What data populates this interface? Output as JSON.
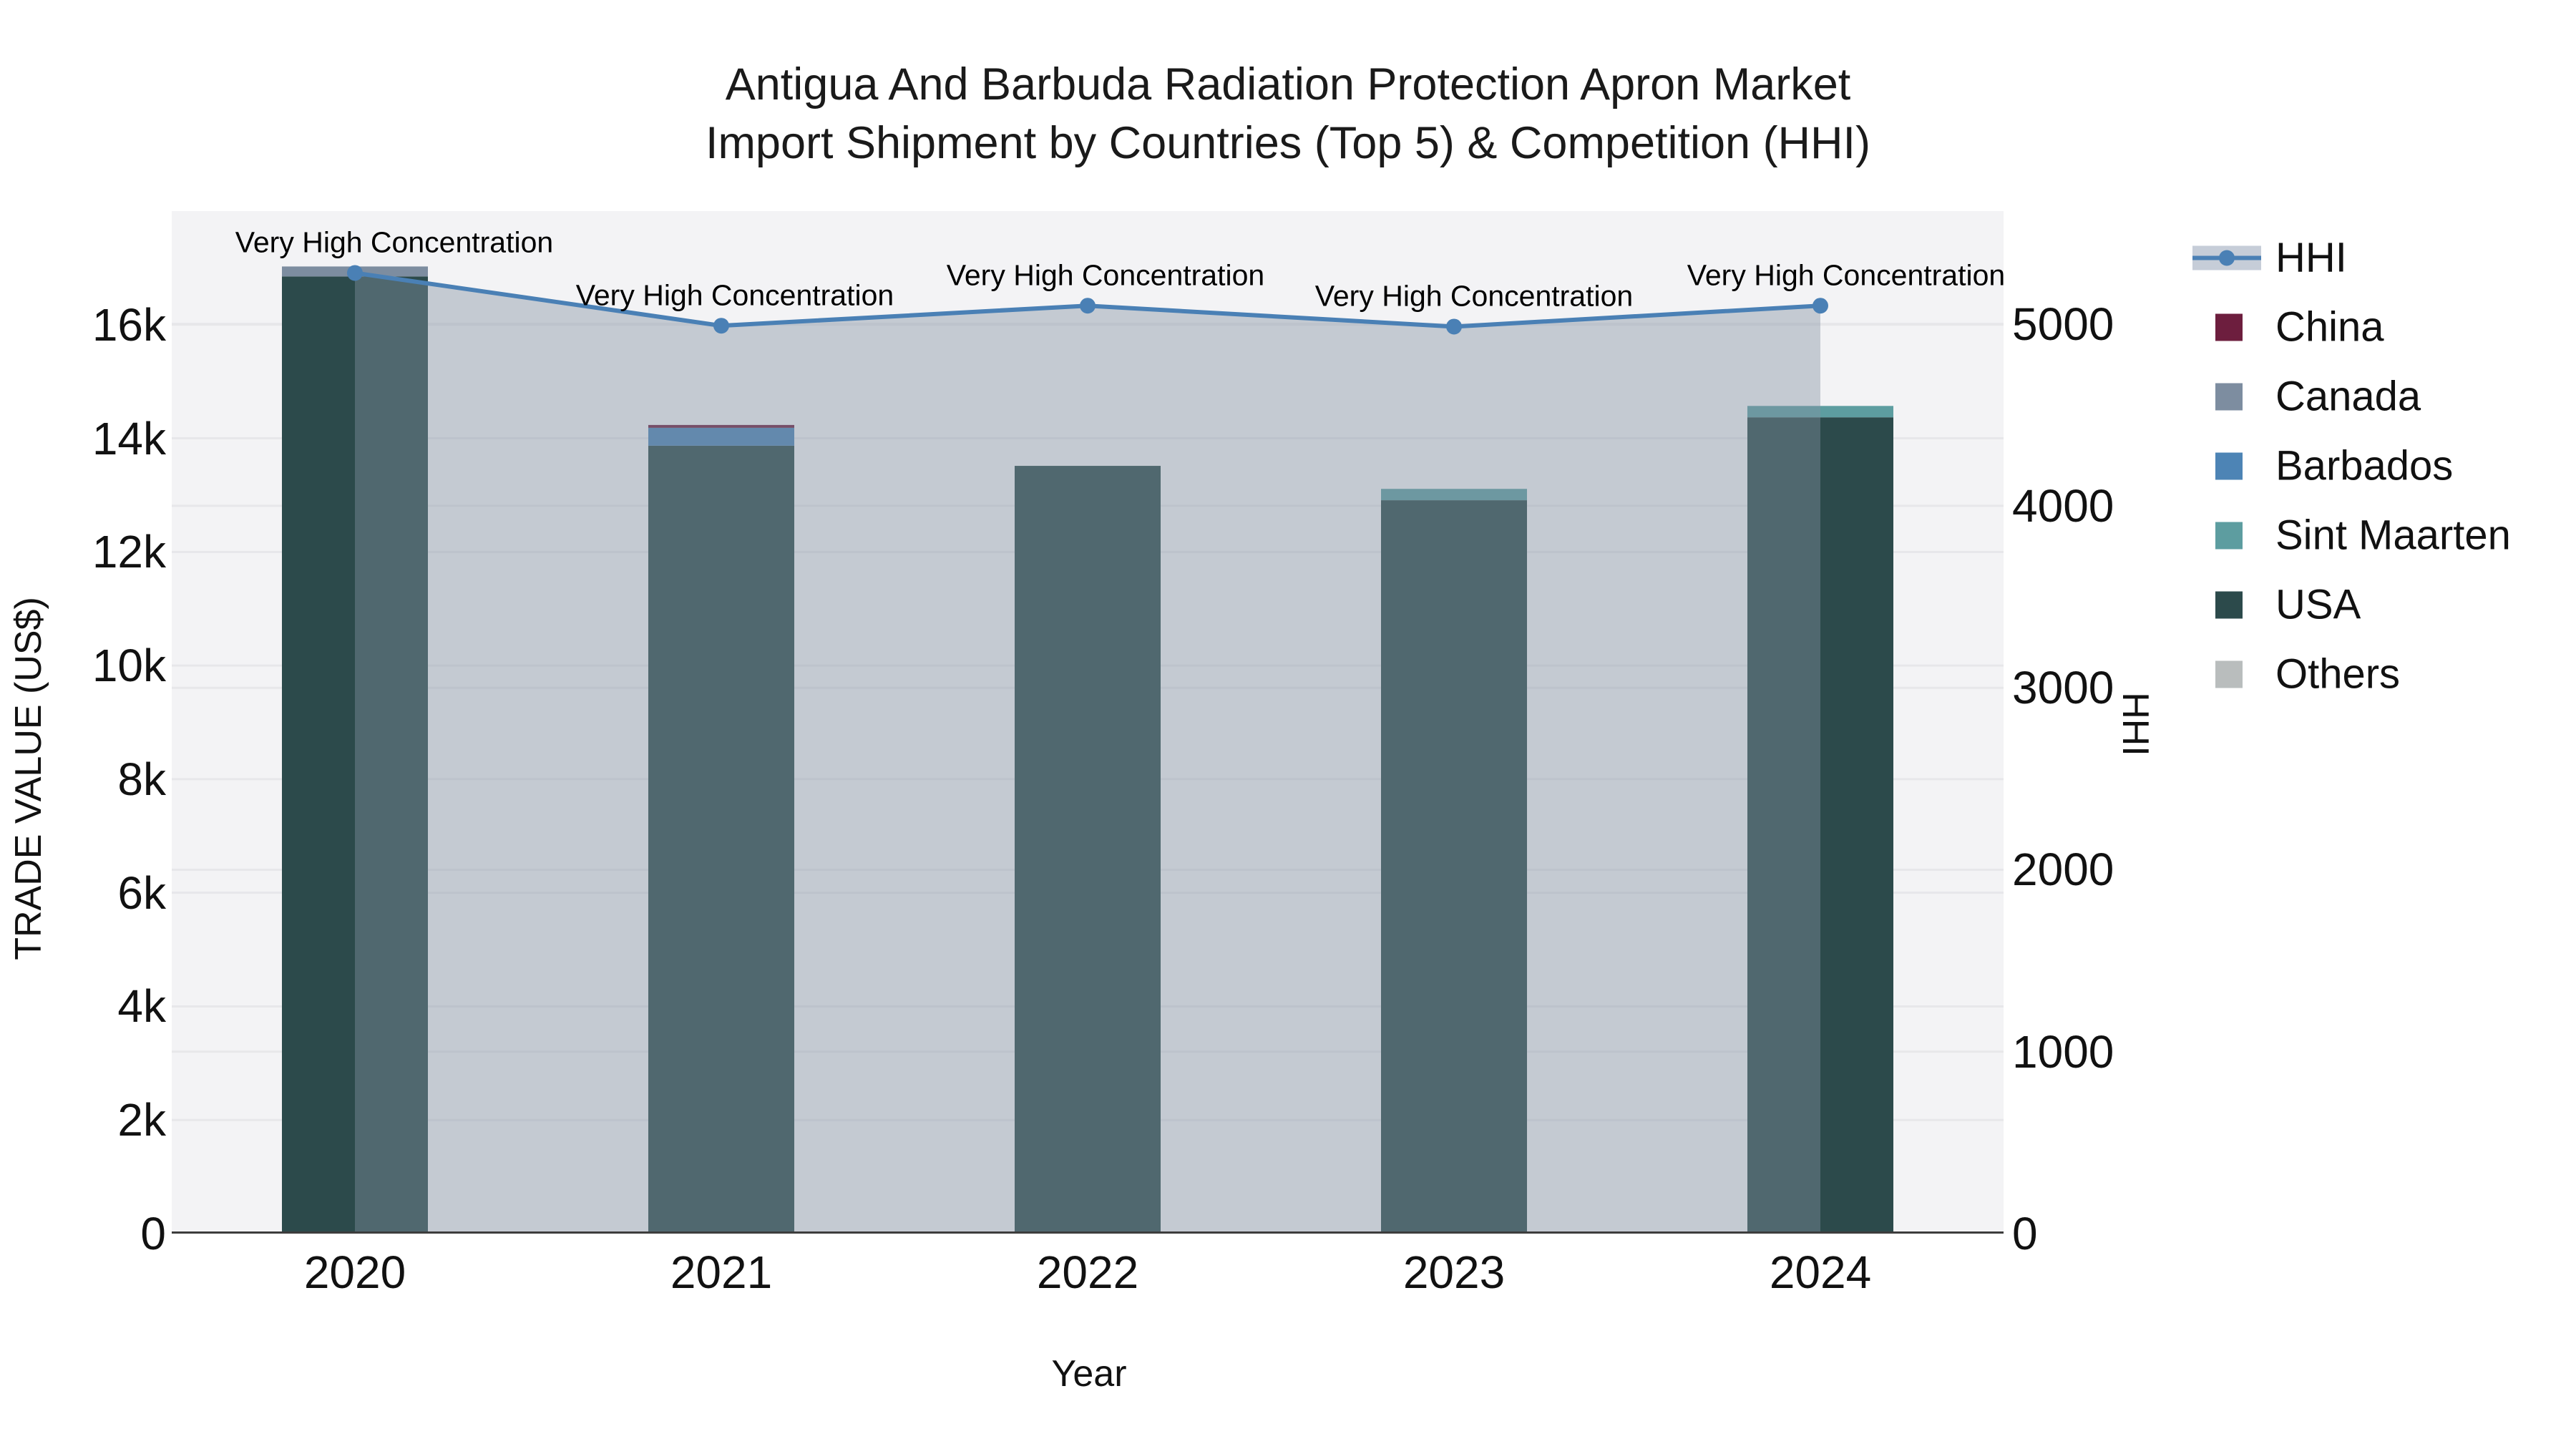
{
  "title": {
    "line1": "Antigua And Barbuda Radiation Protection Apron Market",
    "line2": "Import Shipment by Countries (Top 5) & Competition (HHI)"
  },
  "chart_data": {
    "type": "bar+line",
    "categories": [
      "2020",
      "2021",
      "2022",
      "2023",
      "2024"
    ],
    "stacked_bars": {
      "stack_order_bottom_to_top": [
        "USA",
        "Sint Maarten",
        "Barbados",
        "Canada",
        "China",
        "Others"
      ],
      "series": [
        {
          "name": "China",
          "color": "#6d1e3e",
          "values": [
            0,
            50,
            0,
            0,
            0
          ]
        },
        {
          "name": "Canada",
          "color": "#7d8da0",
          "values": [
            175,
            0,
            0,
            0,
            0
          ]
        },
        {
          "name": "Barbados",
          "color": "#4d84b5",
          "values": [
            0,
            315,
            0,
            0,
            0
          ]
        },
        {
          "name": "Sint Maarten",
          "color": "#5d9da0",
          "values": [
            0,
            0,
            0,
            200,
            200
          ]
        },
        {
          "name": "USA",
          "color": "#2c4a4b",
          "values": [
            16850,
            13870,
            13515,
            12910,
            14370
          ]
        },
        {
          "name": "Others",
          "color": "#b9bdbd",
          "values": [
            0,
            0,
            0,
            0,
            0
          ]
        }
      ],
      "stack_totals": [
        17025,
        14235,
        13515,
        13110,
        14570
      ]
    },
    "line_series": {
      "name": "HHI",
      "color": "#4a80b5",
      "area_color": "rgba(132,146,161,0.42)",
      "values": [
        5280,
        4990,
        5100,
        4985,
        5100
      ]
    },
    "annotation_labels": [
      "Very High Concentration",
      "Very High Concentration",
      "Very High Concentration",
      "Very High Concentration",
      "Very High Concentration"
    ],
    "x_axis": {
      "title": "Year",
      "tick_labels": [
        "2020",
        "2021",
        "2022",
        "2023",
        "2024"
      ]
    },
    "y_axis_left": {
      "title": "TRADE VALUE (US$)",
      "range": [
        0,
        18000
      ],
      "ticks": [
        {
          "value": 0,
          "label": "0"
        },
        {
          "value": 2000,
          "label": "2k"
        },
        {
          "value": 4000,
          "label": "4k"
        },
        {
          "value": 6000,
          "label": "6k"
        },
        {
          "value": 8000,
          "label": "8k"
        },
        {
          "value": 10000,
          "label": "10k"
        },
        {
          "value": 12000,
          "label": "12k"
        },
        {
          "value": 14000,
          "label": "14k"
        },
        {
          "value": 16000,
          "label": "16k"
        }
      ]
    },
    "y_axis_right": {
      "title": "HHI",
      "range": [
        0,
        5620
      ],
      "ticks": [
        {
          "value": 0,
          "label": "0"
        },
        {
          "value": 1000,
          "label": "1000"
        },
        {
          "value": 2000,
          "label": "2000"
        },
        {
          "value": 3000,
          "label": "3000"
        },
        {
          "value": 4000,
          "label": "4000"
        },
        {
          "value": 5000,
          "label": "5000"
        }
      ]
    },
    "legend": {
      "position": "right",
      "items": [
        "HHI",
        "China",
        "Canada",
        "Barbados",
        "Sint Maarten",
        "USA",
        "Others"
      ]
    },
    "grid": true,
    "plot_background": "#f3f3f5",
    "axis_line_color": "#3d3d3d",
    "gridline_color": "#e7e7ea"
  }
}
